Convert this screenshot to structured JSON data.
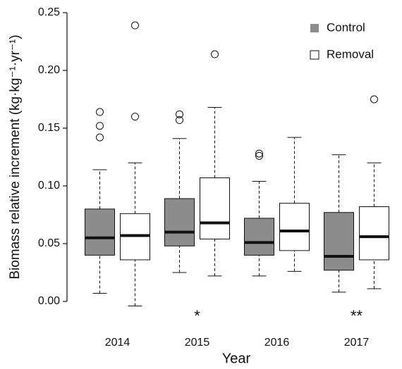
{
  "chart_data": {
    "type": "box",
    "ylabel": "Biomass relative increment (kg·kg⁻¹·yr⁻¹)",
    "xlabel": "Year",
    "categories": [
      "2014",
      "2015",
      "2016",
      "2017"
    ],
    "significance": [
      null,
      "*",
      null,
      "**"
    ],
    "ylim": [
      0,
      0.25
    ],
    "yticks": [
      {
        "value": 0,
        "label": "0.00"
      },
      0.05,
      {
        "value": 0.1,
        "label": "0.10"
      },
      0.15,
      {
        "value": 0.2,
        "label": "0.20"
      },
      0.25
    ],
    "legend": "top-right",
    "series": [
      {
        "name": "Control",
        "color": "#8c8c8c",
        "whisker_low": [
          0.007,
          0.025,
          0.022,
          0.008
        ],
        "q1": [
          0.04,
          0.048,
          0.04,
          0.027
        ],
        "median": [
          0.055,
          0.06,
          0.051,
          0.039
        ],
        "q3": [
          0.08,
          0.089,
          0.072,
          0.077
        ],
        "whisker_high": [
          0.114,
          0.141,
          0.104,
          0.127
        ],
        "outliers": [
          [
            0.142,
            0.152,
            0.164
          ],
          [
            0.157,
            0.162
          ],
          [
            0.126,
            0.128
          ],
          []
        ]
      },
      {
        "name": "Removal",
        "color": "#ffffff",
        "whisker_low": [
          -0.004,
          0.022,
          0.026,
          0.011
        ],
        "q1": [
          0.036,
          0.054,
          0.044,
          0.036
        ],
        "median": [
          0.057,
          0.068,
          0.061,
          0.056
        ],
        "q3": [
          0.076,
          0.107,
          0.085,
          0.082
        ],
        "whisker_high": [
          0.12,
          0.168,
          0.142,
          0.12
        ],
        "outliers": [
          [
            0.16,
            0.239
          ],
          [
            0.214
          ],
          [],
          [
            0.175
          ]
        ]
      }
    ]
  }
}
